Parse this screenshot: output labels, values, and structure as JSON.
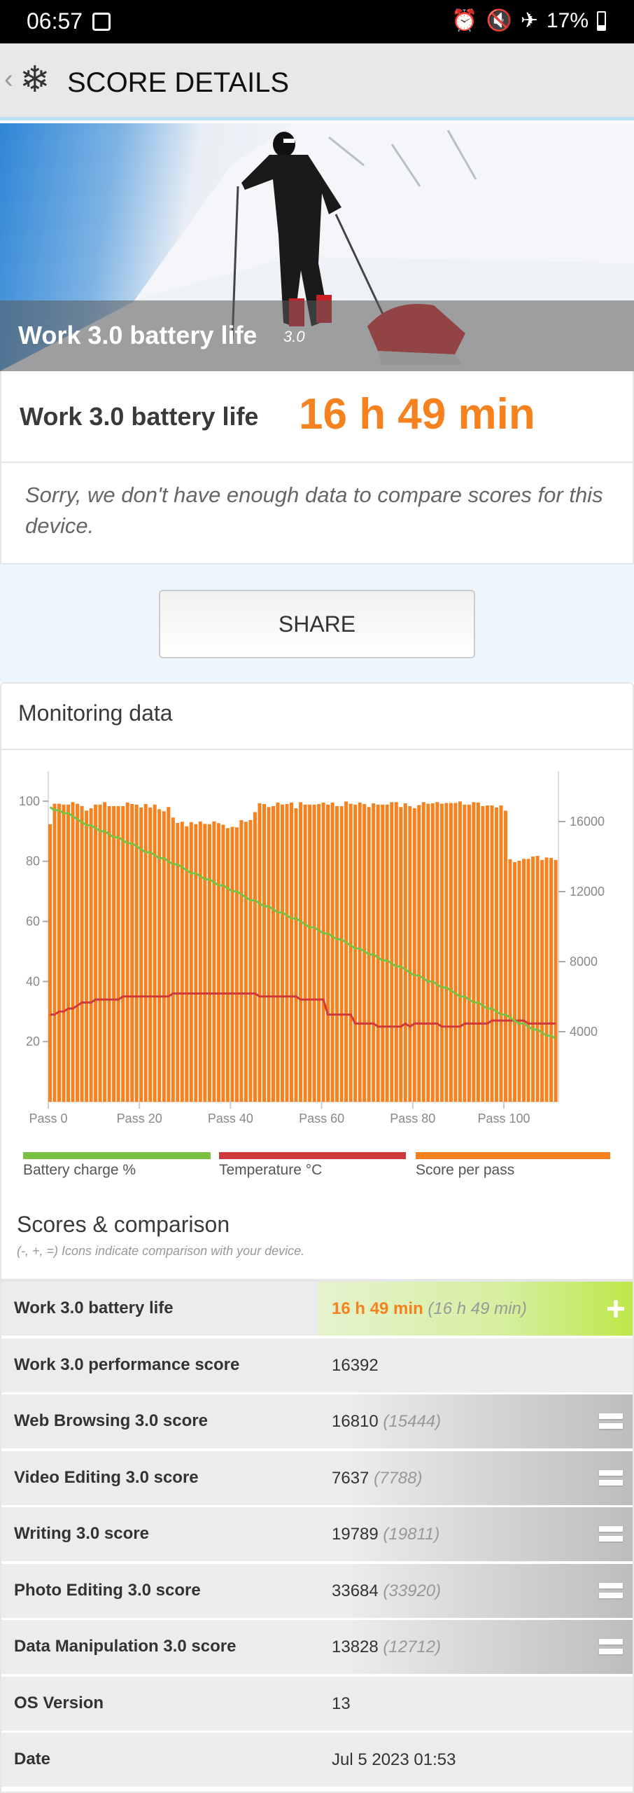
{
  "status_bar": {
    "time": "06:57",
    "battery": "17%",
    "icons": [
      "gallery-icon",
      "alarm-icon",
      "mute-icon",
      "airplane-icon",
      "battery-icon"
    ]
  },
  "header": {
    "title": "SCORE DETAILS",
    "icon": "snowflake-icon"
  },
  "hero": {
    "caption": "Work 3.0 battery life",
    "version": "3.0"
  },
  "score": {
    "label": "Work 3.0 battery life",
    "value": "16 h 49 min"
  },
  "notice": "Sorry, we don't have enough data to compare scores for this device.",
  "share_label": "SHARE",
  "monitoring": {
    "title": "Monitoring data"
  },
  "colors": {
    "accent": "#f6821f",
    "battery": "#7ac143",
    "temperature": "#d0393b",
    "score": "#f6821f"
  },
  "chart_data": {
    "type": "bar",
    "x_tick_labels": [
      "Pass 0",
      "Pass 20",
      "Pass 40",
      "Pass 60",
      "Pass 80",
      "Pass 100"
    ],
    "x_ticks": [
      0,
      20,
      40,
      60,
      80,
      100
    ],
    "left_axis": {
      "ticks": [
        20,
        40,
        60,
        80,
        100
      ],
      "range": [
        0,
        110
      ]
    },
    "right_axis": {
      "ticks": [
        4000,
        8000,
        12000,
        16000
      ],
      "range": [
        0,
        18880
      ]
    },
    "legend": [
      "Battery charge %",
      "Temperature °C",
      "Score per pass"
    ],
    "series": [
      {
        "name": "Score per pass",
        "type": "bar",
        "axis": "right",
        "values": [
          15850,
          17020,
          17020,
          16970,
          16970,
          17110,
          17020,
          16880,
          16630,
          16760,
          16970,
          16970,
          17110,
          16880,
          16880,
          16880,
          16880,
          17090,
          17000,
          16970,
          16800,
          17000,
          16800,
          16970,
          16710,
          16590,
          16830,
          16230,
          15920,
          15990,
          15730,
          15970,
          15850,
          16010,
          15870,
          15850,
          16010,
          15910,
          15820,
          15630,
          15700,
          15670,
          16080,
          15990,
          16080,
          16540,
          17050,
          17000,
          16830,
          16880,
          17090,
          16970,
          17000,
          17090,
          16760,
          17110,
          16970,
          16970,
          16970,
          17000,
          17090,
          16970,
          17090,
          16880,
          16880,
          17150,
          17020,
          16970,
          17090,
          17000,
          16830,
          17040,
          16970,
          16970,
          16970,
          17110,
          17110,
          16830,
          17040,
          16880,
          16760,
          16940,
          17110,
          17020,
          17040,
          17110,
          17020,
          17060,
          17060,
          17060,
          17150,
          16970,
          16970,
          17110,
          17090,
          16880,
          16920,
          16920,
          16800,
          16920,
          16620,
          13850,
          13680,
          13760,
          13870,
          13870,
          14000,
          14040,
          13810,
          13950,
          13920,
          13810
        ]
      },
      {
        "name": "Battery charge %",
        "type": "line",
        "axis": "left",
        "values": [
          98,
          97,
          97,
          96,
          96,
          95,
          94,
          93,
          92,
          92,
          91,
          90,
          90,
          89,
          88,
          88,
          87,
          86,
          86,
          85,
          84,
          83,
          83,
          82,
          81,
          81,
          80,
          79,
          79,
          78,
          77,
          76,
          76,
          75,
          74,
          74,
          73,
          72,
          72,
          71,
          70,
          70,
          69,
          68,
          67,
          67,
          66,
          65,
          65,
          64,
          63,
          63,
          62,
          61,
          61,
          60,
          59,
          58,
          58,
          57,
          56,
          56,
          55,
          54,
          54,
          53,
          52,
          51,
          51,
          50,
          49,
          49,
          48,
          47,
          47,
          46,
          45,
          45,
          44,
          43,
          42,
          42,
          41,
          40,
          40,
          39,
          38,
          38,
          37,
          36,
          35,
          35,
          34,
          33,
          33,
          32,
          31,
          31,
          30,
          29,
          29,
          28,
          27,
          26,
          26,
          25,
          24,
          24,
          23,
          22,
          22,
          21
        ]
      },
      {
        "name": "Temperature °C",
        "type": "line",
        "axis": "left",
        "values": [
          29,
          29,
          30,
          30,
          31,
          31,
          32,
          33,
          33,
          33,
          34,
          34,
          34,
          34,
          34,
          34,
          35,
          35,
          35,
          35,
          35,
          35,
          35,
          35,
          35,
          35,
          35,
          36,
          36,
          36,
          36,
          36,
          36,
          36,
          36,
          36,
          36,
          36,
          36,
          36,
          36,
          36,
          36,
          36,
          36,
          36,
          35,
          35,
          35,
          35,
          35,
          35,
          35,
          35,
          35,
          34,
          34,
          34,
          34,
          34,
          34,
          29,
          29,
          29,
          29,
          29,
          29,
          26,
          26,
          26,
          26,
          26,
          25,
          25,
          25,
          25,
          25,
          25,
          26,
          25,
          26,
          26,
          26,
          26,
          26,
          26,
          25,
          25,
          25,
          25,
          25,
          26,
          26,
          26,
          26,
          26,
          26,
          27,
          27,
          27,
          27,
          27,
          27,
          27,
          27,
          26,
          26,
          26,
          26,
          26,
          26,
          26
        ]
      }
    ]
  },
  "scores": {
    "title": "Scores & comparison",
    "subtitle": "(-, +, =) Icons indicate comparison with your device.",
    "rows": [
      {
        "label": "Work 3.0 battery life",
        "value": "16 h 49 min",
        "compare": "(16 h 49 min)",
        "icon": "plus"
      },
      {
        "label": "Work 3.0 performance score",
        "value": "16392",
        "compare": "",
        "icon": ""
      },
      {
        "label": "Web Browsing 3.0 score",
        "value": "16810",
        "compare": "(15444)",
        "icon": "equal"
      },
      {
        "label": "Video Editing 3.0 score",
        "value": "7637",
        "compare": "(7788)",
        "icon": "equal"
      },
      {
        "label": "Writing 3.0 score",
        "value": "19789",
        "compare": "(19811)",
        "icon": "equal"
      },
      {
        "label": "Photo Editing 3.0 score",
        "value": "33684",
        "compare": "(33920)",
        "icon": "equal"
      },
      {
        "label": "Data Manipulation 3.0 score",
        "value": "13828",
        "compare": "(12712)",
        "icon": "equal"
      },
      {
        "label": "OS Version",
        "value": "13",
        "compare": "",
        "icon": ""
      },
      {
        "label": "Date",
        "value": "Jul 5 2023 01:53",
        "compare": "",
        "icon": ""
      }
    ]
  }
}
